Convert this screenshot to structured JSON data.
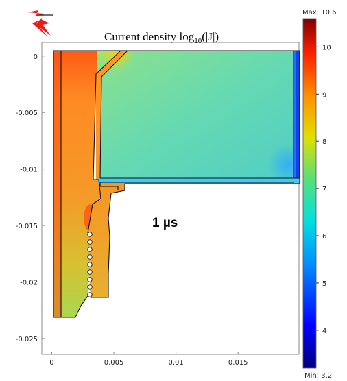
{
  "chart_data": {
    "type": "heatmap",
    "title": "Current density log",
    "title_sub": "10",
    "title_suffix": "(|J|)",
    "annotation": "1 µs",
    "x_ticks": [
      "0",
      "0.005",
      "0.01",
      "0.015"
    ],
    "x_tick_values": [
      0,
      0.005,
      0.01,
      0.015
    ],
    "y_ticks": [
      "0",
      "-0.005",
      "-0.01",
      "-0.015",
      "-0.02",
      "-0.025"
    ],
    "y_tick_values": [
      0,
      -0.005,
      -0.01,
      -0.015,
      -0.02,
      -0.025
    ],
    "xlim": [
      -0.0008,
      0.0199
    ],
    "ylim": [
      -0.0264,
      0.0012
    ],
    "colorbar": {
      "max_label": "Max: 10.6",
      "min_label": "Min: 3.2",
      "range": [
        3.2,
        10.6
      ],
      "ticks": [
        "10",
        "9",
        "8",
        "7",
        "6",
        "5",
        "4"
      ],
      "tick_values": [
        10,
        9,
        8,
        7,
        6,
        5,
        4
      ]
    },
    "regions": [
      {
        "name": "outer-conductor",
        "log10_J": 8.2
      },
      {
        "name": "outer-conductor-upper-edge",
        "log10_J": 9.8
      },
      {
        "name": "inner-conductor",
        "log10_J": 8.3
      },
      {
        "name": "gap-block",
        "log10_J": 7.0
      },
      {
        "name": "right-strip",
        "log10_J": 4.5
      },
      {
        "name": "bottom-strip",
        "log10_J": 6.4
      }
    ]
  }
}
